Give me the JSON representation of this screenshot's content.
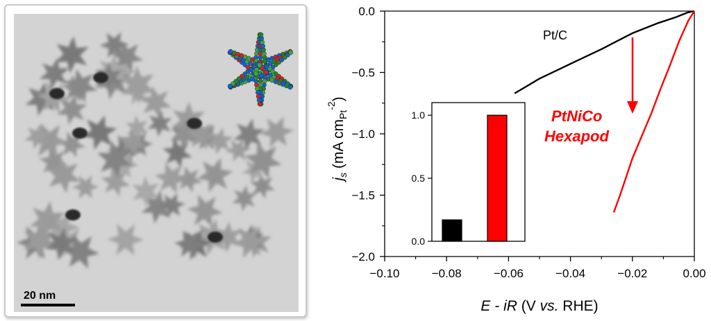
{
  "tem": {
    "scale_bar_label": "20 nm"
  },
  "chart_data": [
    {
      "type": "line",
      "xlabel_prefix": "E",
      "xlabel_mid": " - ",
      "xlabel_ir": "iR",
      "xlabel_paren_open": " (V ",
      "xlabel_vs": "vs.",
      "xlabel_rest": " RHE)",
      "ylabel_j": "j",
      "ylabel_sub_s": "s",
      "ylabel_units": " (mA cm",
      "ylabel_sub_pt": "Pt",
      "ylabel_sup": "-2",
      "ylabel_close": ")",
      "xlim": [
        -0.1,
        0.0
      ],
      "ylim": [
        -2.0,
        0.0
      ],
      "xticks": [
        -0.1,
        -0.08,
        -0.06,
        -0.04,
        -0.02,
        0.0
      ],
      "xtick_labels": [
        "−0.10",
        "−0.08",
        "−0.06",
        "−0.04",
        "−0.02",
        "0.00"
      ],
      "yticks": [
        0.0,
        -0.5,
        -1.0,
        -1.5,
        -2.0
      ],
      "ytick_labels": [
        "0.0",
        "−0.5",
        "−1.0",
        "−1.5",
        "−2.0"
      ],
      "series": [
        {
          "name": "Pt/C",
          "color": "#000000",
          "x": [
            -0.058,
            -0.05,
            -0.04,
            -0.03,
            -0.02,
            -0.012,
            -0.006,
            -0.002,
            0.0
          ],
          "y": [
            -0.67,
            -0.55,
            -0.43,
            -0.31,
            -0.18,
            -0.1,
            -0.05,
            -0.01,
            0.0
          ]
        },
        {
          "name": "PtNiCo Hexapod",
          "color": "#ff0000",
          "x": [
            -0.026,
            -0.024,
            -0.022,
            -0.02,
            -0.017,
            -0.014,
            -0.011,
            -0.008,
            -0.005,
            -0.002,
            0.0
          ],
          "y": [
            -1.64,
            -1.5,
            -1.35,
            -1.2,
            -1.02,
            -0.84,
            -0.64,
            -0.45,
            -0.25,
            -0.08,
            0.0
          ]
        }
      ],
      "annotations": {
        "ptc_label": "Pt/C",
        "hexapod_line1": "PtNiCo",
        "hexapod_line2": "Hexapod",
        "arrow_color": "#ff0000"
      }
    },
    {
      "type": "bar",
      "ylim": [
        0.0,
        1.1
      ],
      "yticks": [
        0.0,
        0.5,
        1.0
      ],
      "ytick_labels": [
        "0.0",
        "0.5",
        "1.0"
      ],
      "values": [
        0.17,
        1.0
      ],
      "colors": [
        "#000000",
        "#ff0000"
      ]
    }
  ]
}
